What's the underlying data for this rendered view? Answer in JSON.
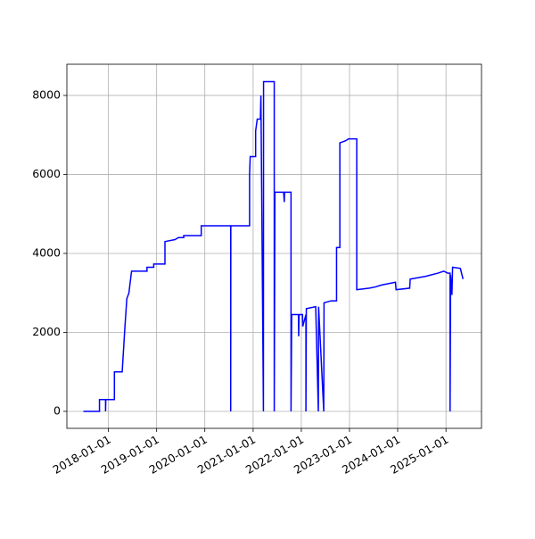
{
  "chart_data": {
    "type": "line",
    "x": [
      "2017-06-25",
      "2017-10-25",
      "2017-10-25",
      "2017-12-10",
      "2017-12-10",
      "2017-12-12",
      "2018-02-15",
      "2018-02-15",
      "2018-04-15",
      "2018-05-05",
      "2018-05-20",
      "2018-06-05",
      "2018-06-25",
      "2018-10-20",
      "2018-10-20",
      "2018-12-10",
      "2018-12-10",
      "2019-03-05",
      "2019-03-05",
      "2019-05-20",
      "2019-06-15",
      "2019-07-25",
      "2019-07-25",
      "2019-12-05",
      "2019-12-05",
      "2020-07-15",
      "2020-07-15",
      "2020-07-16",
      "2020-12-05",
      "2020-12-05",
      "2020-12-10",
      "2021-01-20",
      "2021-01-20",
      "2021-02-01",
      "2021-02-25",
      "2021-03-01",
      "2021-03-20",
      "2021-03-21",
      "2021-06-10",
      "2021-06-10",
      "2021-06-15",
      "2021-08-20",
      "2021-08-25",
      "2021-08-27",
      "2021-10-15",
      "2021-10-15",
      "2021-10-20",
      "2021-12-10",
      "2021-12-12",
      "2021-12-15",
      "2022-01-10",
      "2022-01-12",
      "2022-02-05",
      "2022-02-05",
      "2022-02-08",
      "2022-04-20",
      "2022-05-10",
      "2022-05-12",
      "2022-06-20",
      "2022-06-22",
      "2022-08-15",
      "2022-09-25",
      "2022-09-25",
      "2022-10-20",
      "2022-10-20",
      "2022-12-01",
      "2022-12-25",
      "2023-02-25",
      "2023-02-25",
      "2023-06-01",
      "2023-07-15",
      "2023-09-01",
      "2023-12-15",
      "2023-12-20",
      "2024-04-01",
      "2024-04-05",
      "2024-08-01",
      "2024-11-01",
      "2024-12-15",
      "2025-01-15",
      "2025-02-01",
      "2025-02-01",
      "2025-02-05",
      "2025-02-15",
      "2025-02-20",
      "2025-04-20",
      "2025-05-10"
    ],
    "series": [
      {
        "color": "#0000ff",
        "values": [
          0,
          0,
          300,
          300,
          0,
          300,
          300,
          1000,
          1000,
          2100,
          2850,
          3000,
          3550,
          3550,
          3650,
          3650,
          3730,
          3730,
          4300,
          4350,
          4400,
          4400,
          4450,
          4450,
          4700,
          4700,
          0,
          4700,
          4700,
          6000,
          6450,
          6450,
          7100,
          7400,
          7400,
          8000,
          0,
          8350,
          8350,
          0,
          5550,
          5550,
          5300,
          5550,
          5550,
          0,
          2450,
          2450,
          1900,
          2450,
          2450,
          2150,
          2450,
          0,
          2600,
          2650,
          0,
          2650,
          0,
          2750,
          2800,
          2800,
          4150,
          4150,
          6800,
          6850,
          6900,
          6900,
          3080,
          3120,
          3150,
          3200,
          3270,
          3080,
          3120,
          3350,
          3420,
          3500,
          3550,
          3500,
          3500,
          0,
          3450,
          2950,
          3650,
          3620,
          3350
        ]
      }
    ],
    "xlim": [
      "2017-02-20",
      "2025-09-27"
    ],
    "xticks": [
      "2018-01-01",
      "2019-01-01",
      "2020-01-01",
      "2021-01-01",
      "2022-01-01",
      "2023-01-01",
      "2024-01-01",
      "2025-01-01"
    ],
    "ylim": [
      -430,
      8790
    ],
    "yticks": [
      0,
      2000,
      4000,
      6000,
      8000
    ],
    "grid": true
  }
}
